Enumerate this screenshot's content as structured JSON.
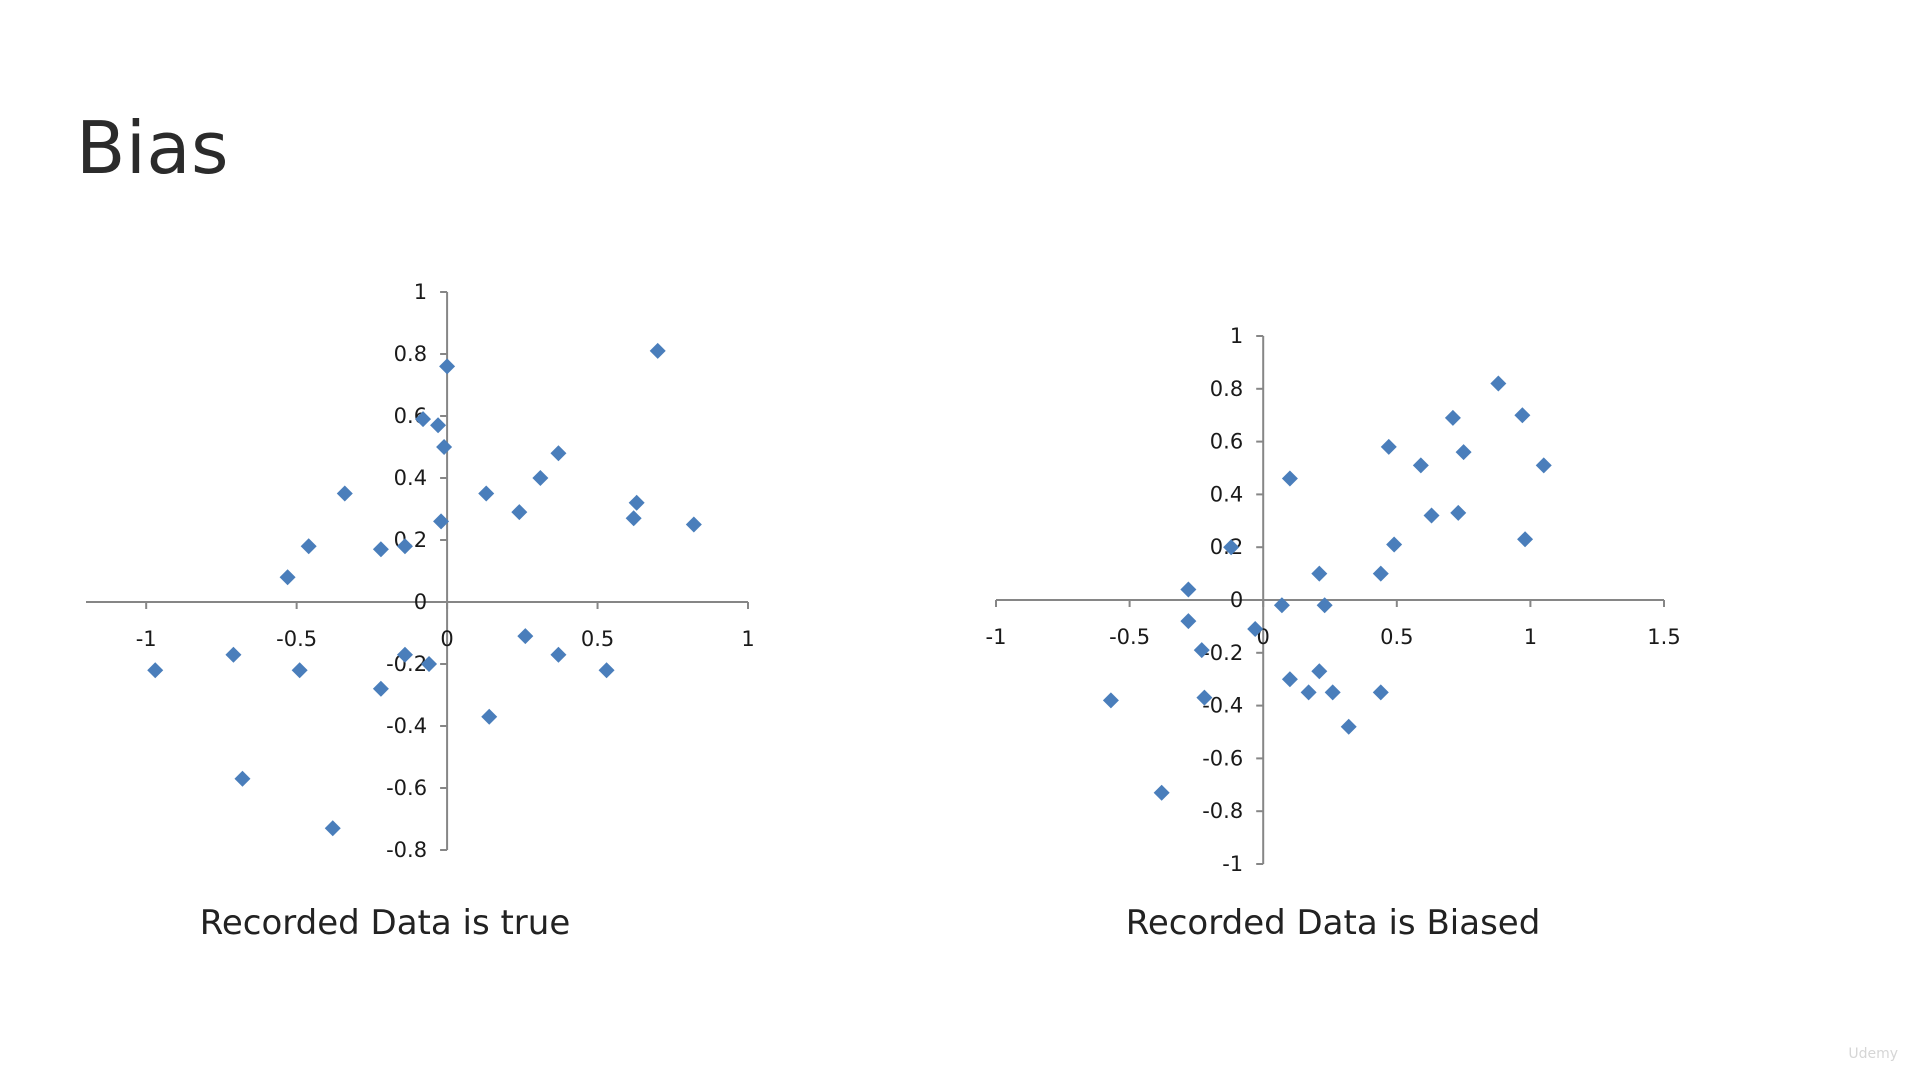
{
  "slide": {
    "title": "Bias",
    "watermark": "Udemy"
  },
  "colors": {
    "marker": "#4A7EBB",
    "axis": "#868686",
    "text": "#222222"
  },
  "chart_data": [
    {
      "type": "scatter",
      "caption": "Recorded Data is true",
      "xlim": [
        -1.2,
        1
      ],
      "ylim": [
        -0.8,
        1
      ],
      "xticks": [
        {
          "v": -1,
          "label": "-1"
        },
        {
          "v": -0.5,
          "label": "-0.5"
        },
        {
          "v": 0,
          "label": "0"
        },
        {
          "v": 0.5,
          "label": "0.5"
        },
        {
          "v": 1,
          "label": "1"
        }
      ],
      "yticks": [
        {
          "v": 1,
          "label": "1"
        },
        {
          "v": 0.8,
          "label": "0.8"
        },
        {
          "v": 0.6,
          "label": "0.6"
        },
        {
          "v": 0.4,
          "label": "0.4"
        },
        {
          "v": 0.2,
          "label": "0.2"
        },
        {
          "v": 0,
          "label": "0"
        },
        {
          "v": -0.2,
          "label": "-0.2"
        },
        {
          "v": -0.4,
          "label": "-0.4"
        },
        {
          "v": -0.6,
          "label": "-0.6"
        },
        {
          "v": -0.8,
          "label": "-0.8"
        }
      ],
      "marker": "diamond",
      "points": [
        [
          0.0,
          0.76
        ],
        [
          0.7,
          0.81
        ],
        [
          -0.08,
          0.59
        ],
        [
          -0.03,
          0.57
        ],
        [
          -0.01,
          0.5
        ],
        [
          0.37,
          0.48
        ],
        [
          -0.34,
          0.35
        ],
        [
          0.31,
          0.4
        ],
        [
          0.13,
          0.35
        ],
        [
          0.24,
          0.29
        ],
        [
          0.63,
          0.32
        ],
        [
          0.62,
          0.27
        ],
        [
          0.82,
          0.25
        ],
        [
          -0.02,
          0.26
        ],
        [
          -0.46,
          0.18
        ],
        [
          -0.22,
          0.17
        ],
        [
          -0.14,
          0.18
        ],
        [
          -0.53,
          0.08
        ],
        [
          -0.97,
          -0.22
        ],
        [
          -0.71,
          -0.17
        ],
        [
          -0.49,
          -0.22
        ],
        [
          -0.14,
          -0.17
        ],
        [
          -0.06,
          -0.2
        ],
        [
          0.26,
          -0.11
        ],
        [
          0.37,
          -0.17
        ],
        [
          0.53,
          -0.22
        ],
        [
          -0.22,
          -0.28
        ],
        [
          0.14,
          -0.37
        ],
        [
          -0.68,
          -0.57
        ],
        [
          -0.38,
          -0.73
        ]
      ]
    },
    {
      "type": "scatter",
      "caption": "Recorded Data is Biased",
      "xlim": [
        -1,
        1.5
      ],
      "ylim": [
        -1,
        1
      ],
      "xticks": [
        {
          "v": -1,
          "label": "-1"
        },
        {
          "v": -0.5,
          "label": "-0.5"
        },
        {
          "v": 0,
          "label": "0"
        },
        {
          "v": 0.5,
          "label": "0.5"
        },
        {
          "v": 1,
          "label": "1"
        },
        {
          "v": 1.5,
          "label": "1.5"
        }
      ],
      "yticks": [
        {
          "v": 1,
          "label": "1"
        },
        {
          "v": 0.8,
          "label": "0.8"
        },
        {
          "v": 0.6,
          "label": "0.6"
        },
        {
          "v": 0.4,
          "label": "0.4"
        },
        {
          "v": 0.2,
          "label": "0.2"
        },
        {
          "v": 0,
          "label": "0"
        },
        {
          "v": -0.2,
          "label": "-0.2"
        },
        {
          "v": -0.4,
          "label": "-0.4"
        },
        {
          "v": -0.6,
          "label": "-0.6"
        },
        {
          "v": -0.8,
          "label": "-0.8"
        },
        {
          "v": -1,
          "label": "-1"
        }
      ],
      "marker": "diamond",
      "points": [
        [
          0.88,
          0.82
        ],
        [
          0.97,
          0.7
        ],
        [
          0.71,
          0.69
        ],
        [
          0.47,
          0.58
        ],
        [
          0.75,
          0.56
        ],
        [
          0.59,
          0.51
        ],
        [
          1.05,
          0.51
        ],
        [
          0.1,
          0.46
        ],
        [
          0.63,
          0.32
        ],
        [
          0.73,
          0.33
        ],
        [
          0.98,
          0.23
        ],
        [
          0.49,
          0.21
        ],
        [
          -0.12,
          0.2
        ],
        [
          0.44,
          0.1
        ],
        [
          0.21,
          0.1
        ],
        [
          -0.28,
          0.04
        ],
        [
          0.07,
          -0.02
        ],
        [
          0.23,
          -0.02
        ],
        [
          -0.28,
          -0.08
        ],
        [
          -0.03,
          -0.11
        ],
        [
          -0.23,
          -0.19
        ],
        [
          0.1,
          -0.3
        ],
        [
          0.21,
          -0.27
        ],
        [
          0.17,
          -0.35
        ],
        [
          0.26,
          -0.35
        ],
        [
          0.44,
          -0.35
        ],
        [
          -0.22,
          -0.37
        ],
        [
          -0.57,
          -0.38
        ],
        [
          0.32,
          -0.48
        ],
        [
          -0.38,
          -0.73
        ]
      ]
    }
  ]
}
